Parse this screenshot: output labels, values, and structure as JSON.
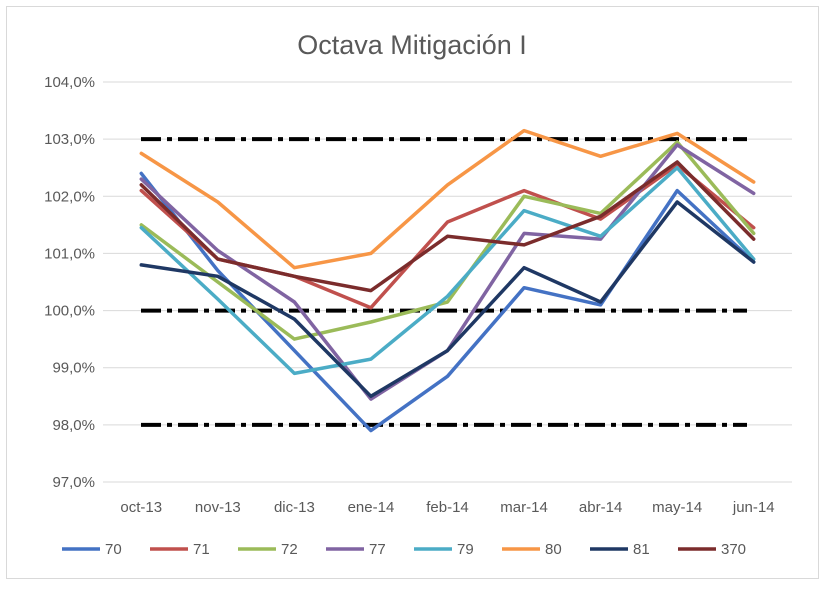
{
  "chart_data": {
    "type": "line",
    "title": "Octava Mitigación I",
    "xlabel": "",
    "ylabel": "",
    "categories": [
      "oct-13",
      "nov-13",
      "dic-13",
      "ene-14",
      "feb-14",
      "mar-14",
      "abr-14",
      "may-14",
      "jun-14"
    ],
    "ylim": [
      97.0,
      104.0
    ],
    "yticks": [
      "97,0%",
      "98,0%",
      "99,0%",
      "100,0%",
      "101,0%",
      "102,0%",
      "103,0%",
      "104,0%"
    ],
    "ytick_values": [
      97,
      98,
      99,
      100,
      101,
      102,
      103,
      104
    ],
    "grid": true,
    "legend_position": "bottom",
    "reference_lines": [
      103.0,
      100.0,
      98.0
    ],
    "series": [
      {
        "name": "70",
        "color": "#4472c4",
        "values": [
          102.4,
          100.7,
          99.3,
          97.9,
          98.85,
          100.4,
          100.1,
          102.1,
          100.85
        ]
      },
      {
        "name": "71",
        "color": "#c0504d",
        "values": [
          102.1,
          100.9,
          100.6,
          100.05,
          101.55,
          102.1,
          101.6,
          102.55,
          101.45
        ]
      },
      {
        "name": "72",
        "color": "#9bbb59",
        "values": [
          101.5,
          100.5,
          99.5,
          99.8,
          100.15,
          102.0,
          101.7,
          102.95,
          101.35
        ]
      },
      {
        "name": "77",
        "color": "#8064a2",
        "values": [
          102.3,
          101.05,
          100.15,
          98.45,
          99.3,
          101.35,
          101.25,
          102.9,
          102.05
        ]
      },
      {
        "name": "79",
        "color": "#4bacc6",
        "values": [
          101.45,
          100.2,
          98.9,
          99.15,
          100.25,
          101.75,
          101.3,
          102.5,
          100.9
        ]
      },
      {
        "name": "80",
        "color": "#f79646",
        "values": [
          102.75,
          101.9,
          100.75,
          101.0,
          102.2,
          103.15,
          102.7,
          103.1,
          102.25
        ]
      },
      {
        "name": "81",
        "color": "#1f3864",
        "values": [
          100.8,
          100.6,
          99.85,
          98.5,
          99.3,
          100.75,
          100.15,
          101.9,
          100.85
        ]
      },
      {
        "name": "370",
        "color": "#7b2c2c",
        "values": [
          102.2,
          100.9,
          100.6,
          100.35,
          101.3,
          101.15,
          101.65,
          102.6,
          101.25
        ]
      }
    ]
  }
}
